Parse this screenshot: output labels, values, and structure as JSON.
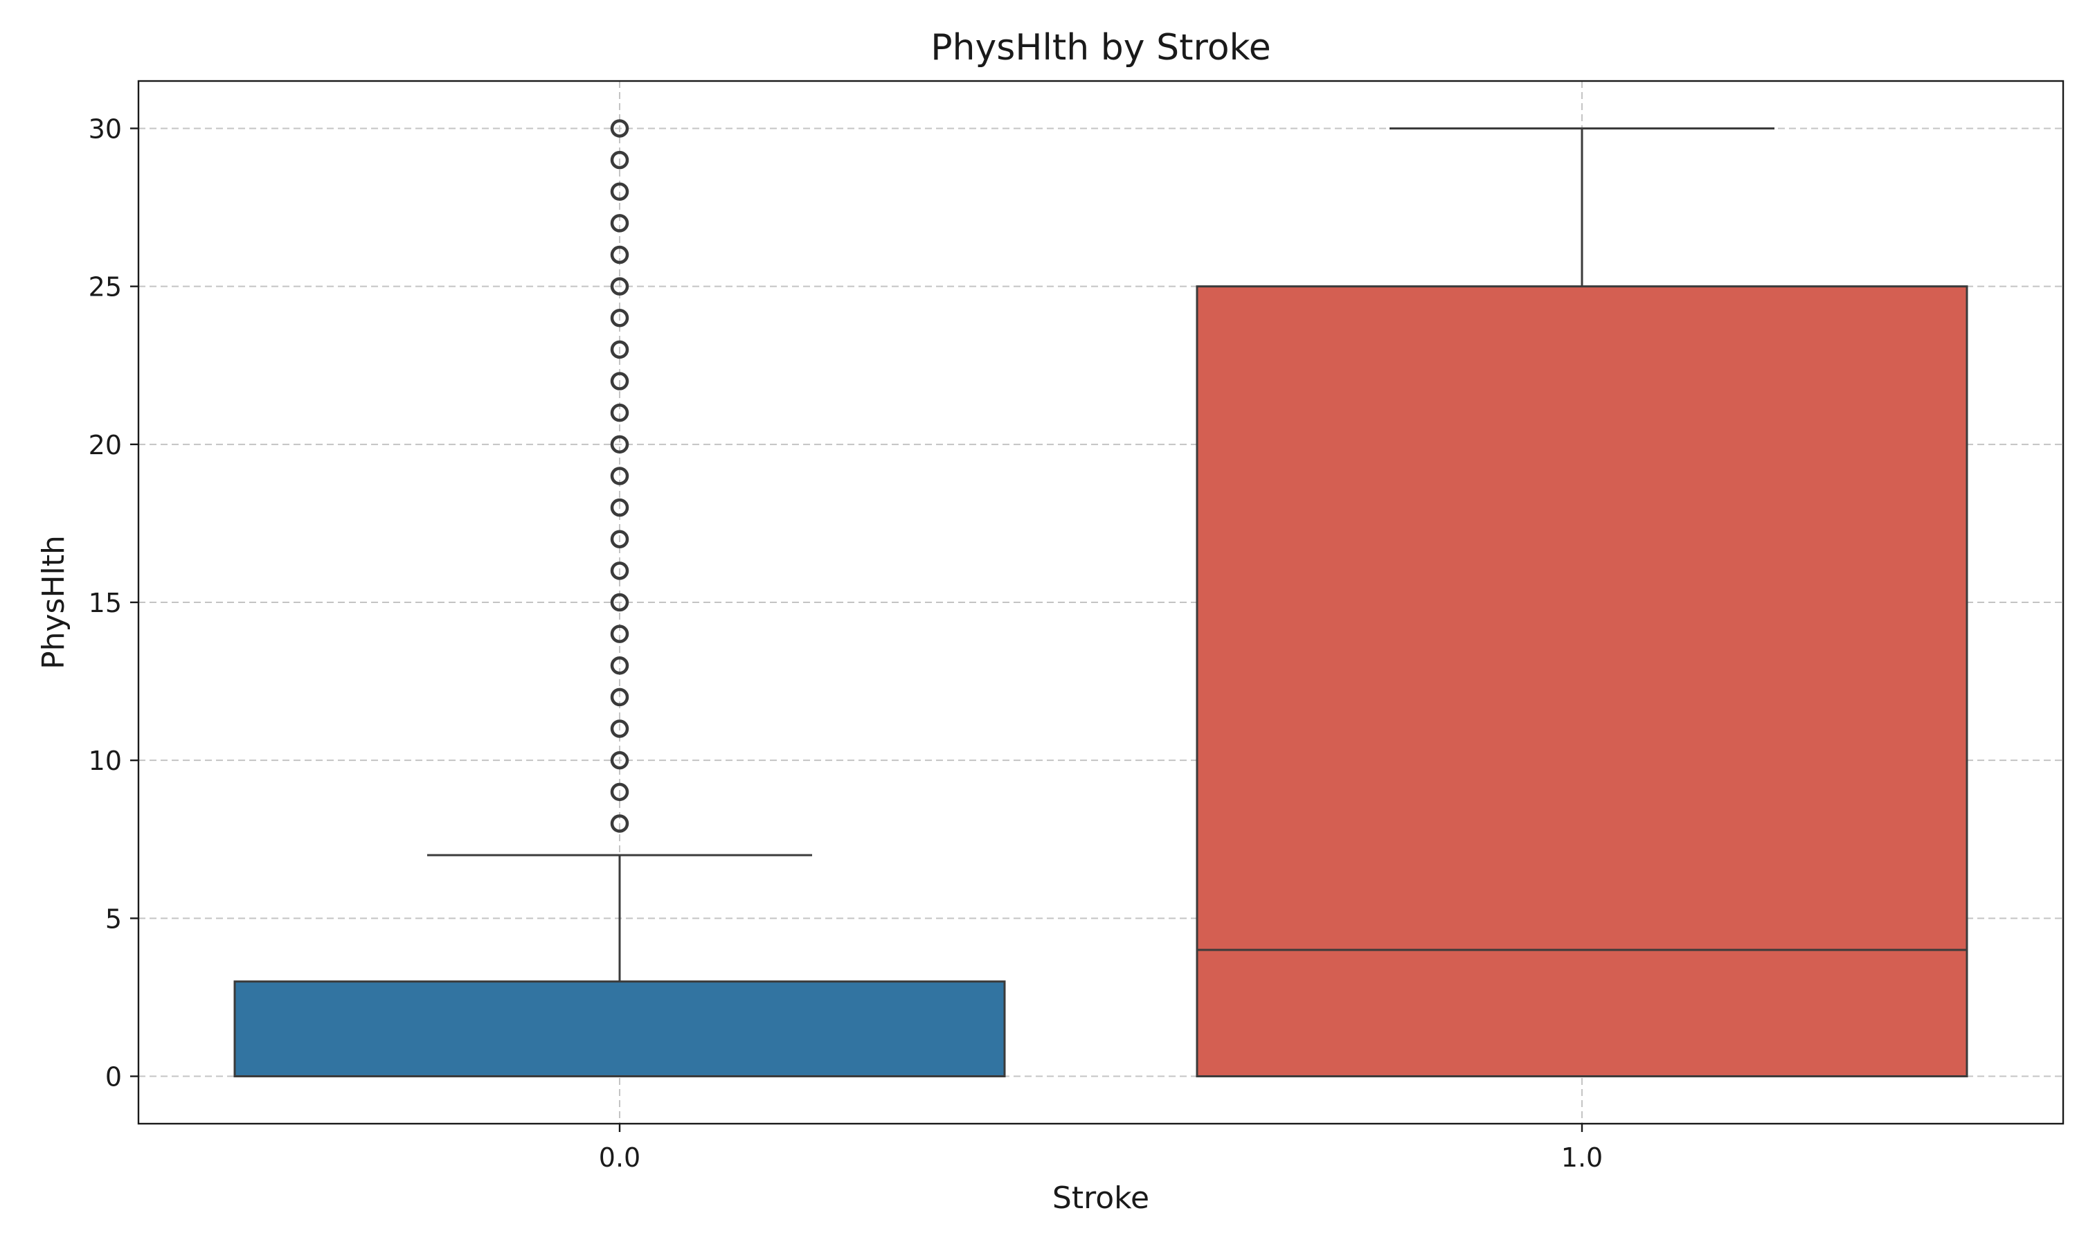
{
  "chart_data": {
    "type": "box",
    "title": "PhysHlth by Stroke",
    "xlabel": "Stroke",
    "ylabel": "PhysHlth",
    "ylim": [
      -1.5,
      31.5
    ],
    "yticks": [
      0,
      5,
      10,
      15,
      20,
      25,
      30
    ],
    "grid": true,
    "categories": [
      "0.0",
      "1.0"
    ],
    "boxes": [
      {
        "category": "0.0",
        "color": "#3274a1",
        "q1": 0,
        "median": 0,
        "q3": 3,
        "whisker_low": 0,
        "whisker_high": 7,
        "outliers": [
          8,
          9,
          10,
          11,
          12,
          13,
          14,
          15,
          16,
          17,
          18,
          19,
          20,
          21,
          22,
          23,
          24,
          25,
          26,
          27,
          28,
          29,
          30
        ]
      },
      {
        "category": "1.0",
        "color": "#d45f52",
        "q1": 0,
        "median": 4,
        "q3": 25,
        "whisker_low": 0,
        "whisker_high": 30,
        "outliers": []
      }
    ]
  }
}
